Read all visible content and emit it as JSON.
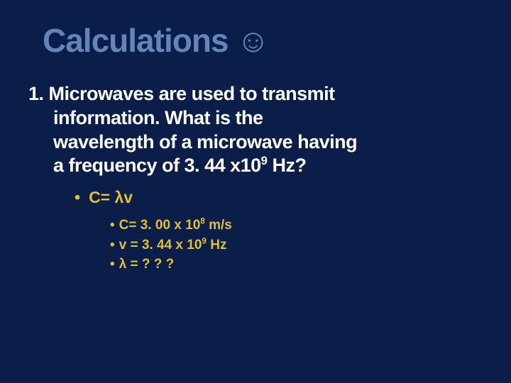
{
  "colors": {
    "background": "#0b1e4a",
    "title": "#6385b8",
    "body": "#ffffff",
    "bullet": "#e2bf37"
  },
  "title": {
    "text": "Calculations",
    "smiley": "☺"
  },
  "body": {
    "line1": "1. Microwaves are used to transmit",
    "line2": "information. What is the",
    "line3": "wavelength of a microwave having",
    "line4a": "a frequency of 3. 44 x10",
    "line4sup": "9",
    "line4b": " Hz?"
  },
  "bullet1": {
    "dot": "•",
    "text": "C= λv"
  },
  "bullet2": {
    "dot": "•",
    "b1a": "C= 3. 00 x 10",
    "b1sup": "8",
    "b1b": " m/s",
    "b2a": "v = 3. 44 x 10",
    "b2sup": "9",
    "b2b": " Hz",
    "b3": "λ = ? ? ?"
  }
}
